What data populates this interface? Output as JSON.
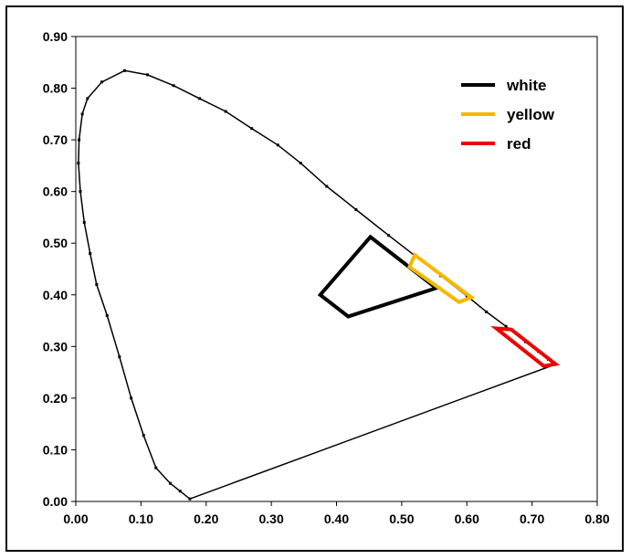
{
  "chart_data": {
    "type": "line",
    "title": "",
    "xlabel": "",
    "ylabel": "",
    "xlim": [
      0.0,
      0.8
    ],
    "ylim": [
      0.0,
      0.9
    ],
    "x_ticks": [
      "0.00",
      "0.10",
      "0.20",
      "0.30",
      "0.40",
      "0.50",
      "0.60",
      "0.70",
      "0.80"
    ],
    "y_ticks": [
      "0.00",
      "0.10",
      "0.20",
      "0.30",
      "0.40",
      "0.50",
      "0.60",
      "0.70",
      "0.80",
      "0.90"
    ],
    "grid": false,
    "legend_position": "top-right",
    "spectral_locus": {
      "x": [
        0.175,
        0.16,
        0.145,
        0.123,
        0.104,
        0.085,
        0.067,
        0.048,
        0.032,
        0.022,
        0.013,
        0.007,
        0.004,
        0.005,
        0.01,
        0.018,
        0.04,
        0.075,
        0.11,
        0.15,
        0.19,
        0.23,
        0.27,
        0.31,
        0.345,
        0.385,
        0.43,
        0.48,
        0.52,
        0.56,
        0.6,
        0.63,
        0.66,
        0.69,
        0.71,
        0.725,
        0.735
      ],
      "y": [
        0.005,
        0.02,
        0.035,
        0.065,
        0.128,
        0.2,
        0.28,
        0.36,
        0.42,
        0.48,
        0.54,
        0.6,
        0.655,
        0.7,
        0.75,
        0.78,
        0.812,
        0.834,
        0.826,
        0.805,
        0.78,
        0.755,
        0.722,
        0.69,
        0.655,
        0.61,
        0.565,
        0.515,
        0.476,
        0.437,
        0.398,
        0.367,
        0.339,
        0.309,
        0.29,
        0.275,
        0.265
      ]
    },
    "series": [
      {
        "name": "white",
        "color": "#000000",
        "x": [
          0.375,
          0.452,
          0.553,
          0.418
        ],
        "y": [
          0.4,
          0.512,
          0.413,
          0.358
        ]
      },
      {
        "name": "yellow",
        "color": "#f5b800",
        "x": [
          0.52,
          0.512,
          0.588,
          0.607
        ],
        "y": [
          0.477,
          0.454,
          0.386,
          0.395
        ]
      },
      {
        "name": "red",
        "color": "#ee0000",
        "x": [
          0.645,
          0.668,
          0.736,
          0.718
        ],
        "y": [
          0.335,
          0.333,
          0.266,
          0.262
        ]
      }
    ]
  }
}
